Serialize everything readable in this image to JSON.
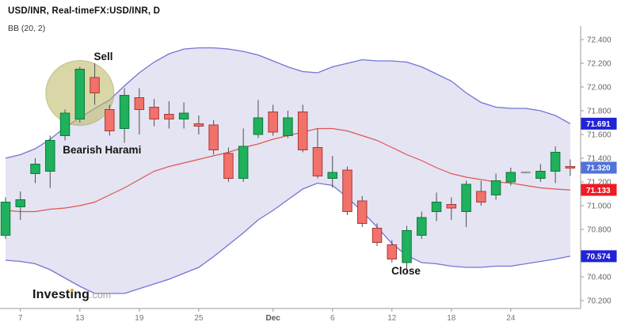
{
  "header": {
    "title": "USD/INR, Real-timeFX:USD/INR, D",
    "indicator_label": "BB (20, 2)"
  },
  "logo": {
    "brand": "Investing",
    "suffix": ".com",
    "dot_color": "#f6a01b"
  },
  "chart_data": {
    "type": "candlestick",
    "symbol": "USD/INR",
    "timeframe": "D",
    "indicator": "Bollinger Bands (20, 2)",
    "y_axis": {
      "min": 70.2,
      "max": 72.4,
      "step": 0.2,
      "decimals": 3
    },
    "x_axis_labels": [
      {
        "index": 1,
        "label": "7"
      },
      {
        "index": 5,
        "label": "13"
      },
      {
        "index": 9,
        "label": "19"
      },
      {
        "index": 13,
        "label": "25"
      },
      {
        "index": 18,
        "label": "Dec",
        "bold": true
      },
      {
        "index": 22,
        "label": "6"
      },
      {
        "index": 26,
        "label": "12"
      },
      {
        "index": 30,
        "label": "18"
      },
      {
        "index": 34,
        "label": "24"
      }
    ],
    "candles": [
      {
        "o": 70.75,
        "h": 71.07,
        "l": 70.72,
        "c": 71.03,
        "d": "up"
      },
      {
        "o": 70.99,
        "h": 71.12,
        "l": 70.88,
        "c": 71.05,
        "d": "up"
      },
      {
        "o": 71.27,
        "h": 71.4,
        "l": 71.19,
        "c": 71.35,
        "d": "up"
      },
      {
        "o": 71.29,
        "h": 71.59,
        "l": 71.15,
        "c": 71.55,
        "d": "up"
      },
      {
        "o": 71.59,
        "h": 71.81,
        "l": 71.55,
        "c": 71.78,
        "d": "up"
      },
      {
        "o": 71.73,
        "h": 72.17,
        "l": 71.7,
        "c": 72.15,
        "d": "up"
      },
      {
        "o": 72.08,
        "h": 72.2,
        "l": 71.85,
        "c": 71.95,
        "d": "down"
      },
      {
        "o": 71.81,
        "h": 71.85,
        "l": 71.59,
        "c": 71.63,
        "d": "down"
      },
      {
        "o": 71.65,
        "h": 71.99,
        "l": 71.53,
        "c": 71.93,
        "d": "up"
      },
      {
        "o": 71.91,
        "h": 71.99,
        "l": 71.6,
        "c": 71.81,
        "d": "down"
      },
      {
        "o": 71.83,
        "h": 71.9,
        "l": 71.67,
        "c": 71.73,
        "d": "down"
      },
      {
        "o": 71.77,
        "h": 71.88,
        "l": 71.65,
        "c": 71.73,
        "d": "down"
      },
      {
        "o": 71.73,
        "h": 71.87,
        "l": 71.65,
        "c": 71.78,
        "d": "up"
      },
      {
        "o": 71.69,
        "h": 71.76,
        "l": 71.6,
        "c": 71.67,
        "d": "down"
      },
      {
        "o": 71.68,
        "h": 71.72,
        "l": 71.43,
        "c": 71.47,
        "d": "down"
      },
      {
        "o": 71.44,
        "h": 71.49,
        "l": 71.2,
        "c": 71.23,
        "d": "down"
      },
      {
        "o": 71.23,
        "h": 71.65,
        "l": 71.2,
        "c": 71.5,
        "d": "up"
      },
      {
        "o": 71.6,
        "h": 71.89,
        "l": 71.57,
        "c": 71.74,
        "d": "up"
      },
      {
        "o": 71.79,
        "h": 71.85,
        "l": 71.59,
        "c": 71.62,
        "d": "down"
      },
      {
        "o": 71.59,
        "h": 71.8,
        "l": 71.57,
        "c": 71.74,
        "d": "up"
      },
      {
        "o": 71.79,
        "h": 71.85,
        "l": 71.45,
        "c": 71.47,
        "d": "down"
      },
      {
        "o": 71.49,
        "h": 71.65,
        "l": 71.23,
        "c": 71.25,
        "d": "down"
      },
      {
        "o": 71.23,
        "h": 71.42,
        "l": 71.15,
        "c": 71.28,
        "d": "up"
      },
      {
        "o": 71.3,
        "h": 71.33,
        "l": 70.92,
        "c": 70.95,
        "d": "down"
      },
      {
        "o": 71.04,
        "h": 71.08,
        "l": 70.82,
        "c": 70.85,
        "d": "down"
      },
      {
        "o": 70.81,
        "h": 70.85,
        "l": 70.66,
        "c": 70.69,
        "d": "down"
      },
      {
        "o": 70.67,
        "h": 70.71,
        "l": 70.52,
        "c": 70.55,
        "d": "down"
      },
      {
        "o": 70.52,
        "h": 70.83,
        "l": 70.43,
        "c": 70.79,
        "d": "up"
      },
      {
        "o": 70.75,
        "h": 70.95,
        "l": 70.72,
        "c": 70.9,
        "d": "up"
      },
      {
        "o": 70.95,
        "h": 71.11,
        "l": 70.87,
        "c": 71.03,
        "d": "up"
      },
      {
        "o": 71.01,
        "h": 71.07,
        "l": 70.88,
        "c": 70.98,
        "d": "down"
      },
      {
        "o": 70.95,
        "h": 71.21,
        "l": 70.82,
        "c": 71.18,
        "d": "up"
      },
      {
        "o": 71.12,
        "h": 71.21,
        "l": 71.0,
        "c": 71.03,
        "d": "down"
      },
      {
        "o": 71.09,
        "h": 71.27,
        "l": 71.05,
        "c": 71.21,
        "d": "up"
      },
      {
        "o": 71.2,
        "h": 71.32,
        "l": 71.17,
        "c": 71.28,
        "d": "up"
      },
      {
        "o": 71.28,
        "h": 71.28,
        "l": 71.28,
        "c": 71.28,
        "d": "flat"
      },
      {
        "o": 71.23,
        "h": 71.35,
        "l": 71.2,
        "c": 71.29,
        "d": "up"
      },
      {
        "o": 71.29,
        "h": 71.5,
        "l": 71.19,
        "c": 71.45,
        "d": "up"
      },
      {
        "o": 71.33,
        "h": 71.39,
        "l": 71.25,
        "c": 71.32,
        "d": "down"
      }
    ],
    "bollinger": {
      "upper": [
        71.4,
        71.43,
        71.48,
        71.56,
        71.66,
        71.74,
        71.82,
        71.89,
        72.01,
        72.12,
        72.21,
        72.28,
        72.32,
        72.33,
        72.33,
        72.32,
        72.3,
        72.27,
        72.22,
        72.17,
        72.13,
        72.12,
        72.17,
        72.2,
        72.23,
        72.22,
        72.22,
        72.21,
        72.17,
        72.11,
        72.05,
        71.95,
        71.87,
        71.83,
        71.82,
        71.82,
        71.8,
        71.76,
        71.691
      ],
      "middle": [
        70.96,
        70.95,
        70.95,
        70.97,
        70.98,
        71.0,
        71.03,
        71.09,
        71.15,
        71.22,
        71.29,
        71.33,
        71.36,
        71.39,
        71.42,
        71.45,
        71.49,
        71.52,
        71.56,
        71.59,
        71.62,
        71.65,
        71.65,
        71.63,
        71.59,
        71.55,
        71.49,
        71.43,
        71.38,
        71.32,
        71.27,
        71.24,
        71.22,
        71.2,
        71.19,
        71.17,
        71.15,
        71.14,
        71.133
      ],
      "lower": [
        70.54,
        70.53,
        70.51,
        70.46,
        70.39,
        70.32,
        70.26,
        70.26,
        70.26,
        70.3,
        70.34,
        70.38,
        70.43,
        70.48,
        70.57,
        70.67,
        70.77,
        70.88,
        70.96,
        71.05,
        71.14,
        71.19,
        71.17,
        71.07,
        70.95,
        70.82,
        70.68,
        70.58,
        70.52,
        70.51,
        70.49,
        70.48,
        70.48,
        70.49,
        70.49,
        70.51,
        70.53,
        70.55,
        70.574
      ]
    },
    "price_badges": [
      {
        "label": "71.691",
        "value": 71.691,
        "bg": "#2123d6"
      },
      {
        "label": "71.320",
        "value": 71.32,
        "bg": "#5073d8"
      },
      {
        "label": "71.133",
        "value": 71.133,
        "bg": "#ee1c25"
      },
      {
        "label": "70.574",
        "value": 70.574,
        "bg": "#2123d6"
      }
    ],
    "annotations": [
      {
        "id": "sell",
        "text": "Sell"
      },
      {
        "id": "bearish_harami",
        "text": "Bearish Harami"
      },
      {
        "id": "close",
        "text": "Close"
      }
    ],
    "highlight_circle": {
      "candle_index": 5,
      "price": 71.95,
      "fill": "#b9b75f",
      "opacity": 0.55
    },
    "colors": {
      "up_fill": "#1fb15c",
      "up_stroke": "#0e7a3e",
      "down_fill": "#f2716b",
      "down_stroke": "#a83a33",
      "flat": "#9a9a9a",
      "wick": "#4e4e4e",
      "band_line": "#7474d6",
      "band_fill": "#e4e4f3",
      "sma_line": "#e0564e",
      "axis_line": "#999999",
      "axis_text": "#666666",
      "time_text": "#777777",
      "annotation_text": "#151515"
    }
  }
}
